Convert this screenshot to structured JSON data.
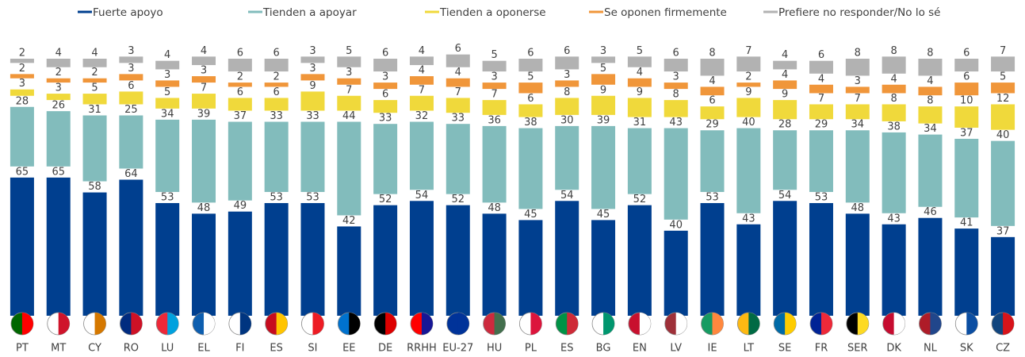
{
  "chart_data": {
    "type": "stacked_bar",
    "categories": [
      "PT",
      "MT",
      "CY",
      "RO",
      "LU",
      "EL",
      "FI",
      "ES",
      "SI",
      "EE",
      "DE",
      "RRHH",
      "EU-27",
      "HU",
      "PL",
      "ES",
      "BG",
      "EN",
      "LV",
      "IE",
      "LT",
      "SE",
      "FR",
      "SER",
      "DK",
      "NL",
      "SK",
      "CZ"
    ],
    "series": [
      {
        "name": "Fuerte apoyo",
        "color": "#003f8f",
        "values": [
          65,
          65,
          58,
          64,
          53,
          48,
          49,
          53,
          53,
          42,
          52,
          54,
          52,
          48,
          45,
          54,
          45,
          52,
          40,
          53,
          43,
          54,
          53,
          48,
          43,
          46,
          41,
          37
        ]
      },
      {
        "name": "Tienden a apoyar",
        "color": "#82bcbc",
        "values": [
          28,
          26,
          31,
          25,
          34,
          39,
          37,
          33,
          33,
          44,
          33,
          32,
          33,
          36,
          38,
          30,
          39,
          31,
          43,
          29,
          40,
          28,
          29,
          34,
          38,
          34,
          37,
          40
        ]
      },
      {
        "name": "Tienden a oponerse",
        "color": "#f0d93b",
        "values": [
          3,
          3,
          5,
          6,
          5,
          7,
          6,
          6,
          9,
          7,
          6,
          7,
          7,
          7,
          6,
          8,
          9,
          9,
          8,
          6,
          9,
          9,
          7,
          7,
          8,
          8,
          10,
          12
        ]
      },
      {
        "name": "Se oponen firmemente",
        "color": "#f0963a",
        "values": [
          2,
          2,
          2,
          3,
          3,
          3,
          2,
          2,
          3,
          3,
          3,
          4,
          4,
          3,
          5,
          3,
          5,
          4,
          3,
          4,
          2,
          4,
          4,
          3,
          4,
          4,
          6,
          5
        ]
      },
      {
        "name": "Prefiere no responder/No lo sé",
        "color": "#b2b2b2",
        "values": [
          2,
          4,
          4,
          3,
          4,
          4,
          6,
          6,
          3,
          5,
          6,
          4,
          6,
          5,
          6,
          6,
          3,
          5,
          6,
          8,
          7,
          4,
          6,
          8,
          8,
          8,
          6,
          7
        ]
      }
    ]
  }
}
